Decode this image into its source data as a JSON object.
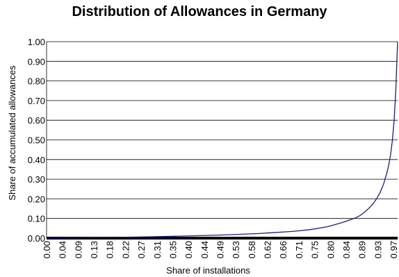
{
  "chart_data": {
    "type": "line",
    "title": "Distribution of Allowances in Germany",
    "xlabel": "Share of installations",
    "ylabel": "Share of accumulated allowances",
    "ylim": [
      0,
      1
    ],
    "xlim": [
      0,
      1
    ],
    "grid": true,
    "y_ticks": [
      "0.00",
      "0.10",
      "0.20",
      "0.30",
      "0.40",
      "0.50",
      "0.60",
      "0.70",
      "0.80",
      "0.90",
      "1.00"
    ],
    "x_ticks": [
      "0.00",
      "0.04",
      "0.09",
      "0.13",
      "0.18",
      "0.22",
      "0.27",
      "0.31",
      "0.35",
      "0.40",
      "0.44",
      "0.49",
      "0.53",
      "0.58",
      "0.62",
      "0.66",
      "0.71",
      "0.75",
      "0.80",
      "0.84",
      "0.89",
      "0.93",
      "0.97"
    ],
    "series": [
      {
        "color": "#1a1a8c",
        "x": [
          0.0,
          0.05,
          0.1,
          0.2,
          0.3,
          0.4,
          0.5,
          0.6,
          0.7,
          0.75,
          0.8,
          0.84,
          0.86,
          0.88,
          0.89,
          0.9,
          0.91,
          0.92,
          0.93,
          0.94,
          0.95,
          0.96,
          0.97,
          0.975,
          0.98,
          0.985,
          0.99,
          0.995,
          1.0
        ],
        "y": [
          0.0,
          0.001,
          0.002,
          0.004,
          0.007,
          0.011,
          0.016,
          0.023,
          0.034,
          0.043,
          0.058,
          0.078,
          0.09,
          0.103,
          0.112,
          0.124,
          0.138,
          0.155,
          0.175,
          0.2,
          0.232,
          0.275,
          0.335,
          0.375,
          0.425,
          0.495,
          0.6,
          0.76,
          1.0
        ]
      }
    ]
  },
  "colors": {
    "line": "#1a1a8c",
    "grid": "#000000",
    "background": "#ffffff"
  }
}
